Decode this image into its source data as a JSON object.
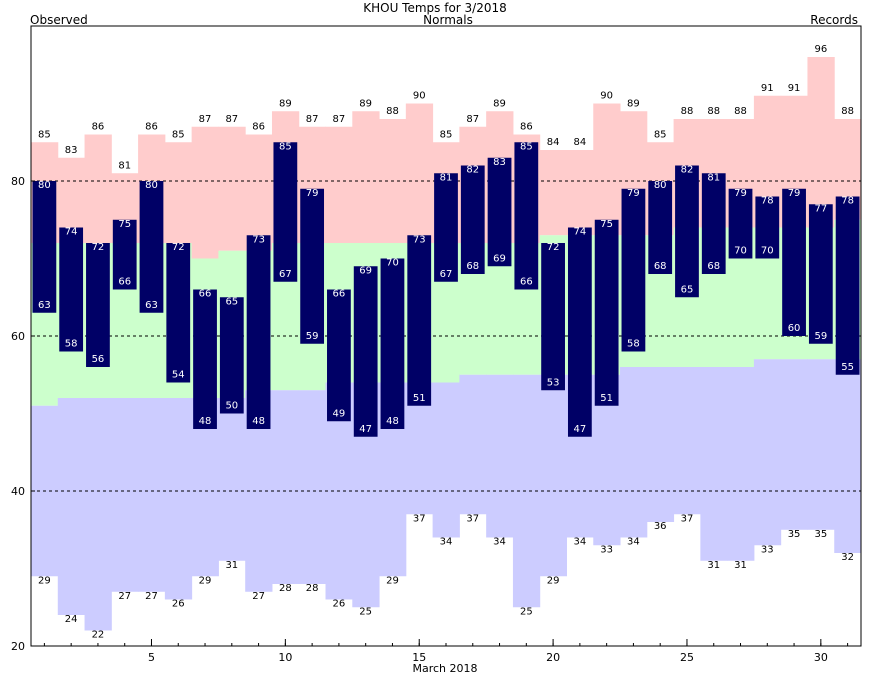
{
  "header": {
    "title": "KHOU Temps for 3/2018",
    "observed_label": "Observed",
    "normals_label": "Normals",
    "records_label": "Records"
  },
  "colors": {
    "observed": "#000066",
    "normals": "#ccffcc",
    "record_high": "#ffcccc",
    "record_low": "#ccccff",
    "observed_label_color": "#000066",
    "normals_label_color": "#006600",
    "records_label_color": "#cc66cc"
  },
  "chart_data": {
    "type": "bar",
    "title": "KHOU Temps for 3/2018",
    "xlabel": "March 2018",
    "ylabel": "",
    "ylim": [
      20,
      100
    ],
    "y_ticks": [
      20,
      40,
      60,
      80
    ],
    "y_gridlines": [
      40,
      60,
      80
    ],
    "x_ticks": [
      5,
      10,
      15,
      20,
      25,
      30
    ],
    "days": [
      1,
      2,
      3,
      4,
      5,
      6,
      7,
      8,
      9,
      10,
      11,
      12,
      13,
      14,
      15,
      16,
      17,
      18,
      19,
      20,
      21,
      22,
      23,
      24,
      25,
      26,
      27,
      28,
      29,
      30,
      31
    ],
    "observed_high": [
      80,
      74,
      72,
      75,
      80,
      72,
      66,
      65,
      73,
      85,
      79,
      66,
      69,
      70,
      73,
      81,
      82,
      83,
      85,
      72,
      74,
      75,
      79,
      80,
      82,
      81,
      79,
      78,
      79,
      77,
      78
    ],
    "observed_low": [
      63,
      58,
      56,
      66,
      63,
      54,
      48,
      50,
      48,
      67,
      59,
      49,
      47,
      48,
      51,
      67,
      68,
      69,
      66,
      53,
      47,
      51,
      58,
      68,
      65,
      68,
      70,
      70,
      60,
      59,
      55
    ],
    "normal_high": [
      72,
      72,
      72,
      72,
      72,
      72,
      70,
      71,
      71,
      72,
      72,
      72,
      72,
      72,
      72,
      72,
      72,
      72,
      72,
      73,
      73,
      73,
      73,
      73,
      74,
      74,
      74,
      74,
      74,
      74,
      75
    ],
    "normal_low": [
      51,
      52,
      52,
      52,
      52,
      52,
      52,
      52,
      53,
      53,
      53,
      54,
      54,
      54,
      54,
      54,
      55,
      55,
      55,
      55,
      55,
      55,
      56,
      56,
      56,
      56,
      56,
      57,
      57,
      57,
      57
    ],
    "record_high": [
      85,
      83,
      86,
      81,
      86,
      85,
      87,
      87,
      86,
      89,
      87,
      87,
      89,
      88,
      90,
      85,
      87,
      89,
      86,
      84,
      84,
      90,
      89,
      85,
      88,
      88,
      88,
      91,
      91,
      96,
      88
    ],
    "record_low": [
      29,
      24,
      22,
      27,
      27,
      26,
      29,
      31,
      27,
      28,
      28,
      26,
      25,
      29,
      37,
      34,
      37,
      34,
      25,
      29,
      34,
      33,
      34,
      36,
      37,
      31,
      31,
      33,
      35,
      35,
      32
    ]
  }
}
